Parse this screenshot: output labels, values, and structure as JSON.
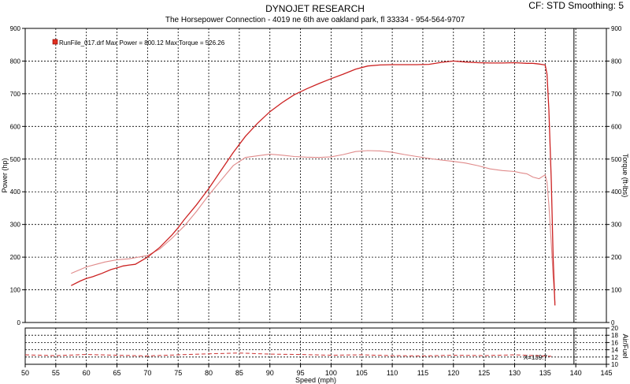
{
  "header": {
    "title": "DYNOJET RESEARCH",
    "subtitle": "The Horsepower Connection - 4019 ne 6th ave oakland park, fl 33334 - 954-564-9707",
    "settings": "CF: STD   Smoothing: 5"
  },
  "colors": {
    "power": "#cc2222",
    "torque": "#e08a8a",
    "afr": "#cc3333",
    "legend_marker": "#e03020",
    "grid": "#000000",
    "frame": "#000000"
  },
  "chart_data": [
    {
      "type": "line",
      "name": "power-torque",
      "xlabel": "Speed (mph)",
      "ylabel": "Power (hp)",
      "y2label": "Torque (ft-lbs)",
      "xlim": [
        50,
        145
      ],
      "ylim": [
        0,
        900
      ],
      "y2lim": [
        0,
        900
      ],
      "x_ticks": [
        50,
        55,
        60,
        65,
        70,
        75,
        80,
        85,
        90,
        95,
        100,
        105,
        110,
        115,
        120,
        125,
        130,
        135,
        140,
        145
      ],
      "y_ticks": [
        0,
        100,
        200,
        300,
        400,
        500,
        600,
        700,
        800,
        900
      ],
      "y2_ticks": [
        0,
        100,
        200,
        300,
        400,
        500,
        600,
        700,
        800,
        900
      ],
      "grid": true,
      "legend": {
        "position": "top-left",
        "entry": "RunFile_017.drf Max Power = 800.12    Max Torque = 526.26"
      },
      "series": [
        {
          "name": "Power",
          "x": [
            57.5,
            59,
            60,
            61,
            62.5,
            64,
            65,
            66,
            67,
            68,
            70,
            72,
            74,
            75,
            76,
            78,
            80,
            82,
            84,
            86,
            88,
            90,
            92,
            94,
            96,
            98,
            100,
            102,
            104,
            106,
            108,
            110,
            112,
            114,
            116,
            118,
            120,
            122,
            124,
            126,
            128,
            130,
            132,
            133,
            134,
            135,
            135.3,
            135.6,
            136,
            136.3,
            136.6
          ],
          "y": [
            113,
            127,
            135,
            140,
            150,
            162,
            167,
            173,
            176,
            178,
            200,
            230,
            268,
            290,
            315,
            360,
            410,
            465,
            520,
            570,
            610,
            645,
            673,
            697,
            715,
            731,
            746,
            760,
            775,
            785,
            788,
            789,
            789,
            789,
            790,
            796,
            800,
            797,
            795,
            794,
            794,
            795,
            793,
            793,
            791,
            788,
            760,
            650,
            430,
            200,
            52
          ]
        },
        {
          "name": "Torque",
          "x": [
            57.5,
            60,
            63,
            65,
            67,
            70,
            72,
            74,
            76,
            78,
            80,
            82,
            84,
            86,
            88,
            90,
            92,
            94,
            96,
            98,
            100,
            102,
            104,
            106,
            108,
            110,
            112,
            114,
            116,
            118,
            120,
            122,
            124,
            126,
            128,
            130,
            131,
            132,
            133,
            134,
            135,
            135.3,
            135.6,
            136,
            136.3,
            136.6
          ],
          "y": [
            150,
            170,
            185,
            192,
            195,
            205,
            225,
            258,
            295,
            340,
            390,
            435,
            480,
            505,
            510,
            515,
            512,
            508,
            506,
            505,
            507,
            514,
            523,
            526,
            525,
            521,
            514,
            508,
            502,
            497,
            493,
            488,
            480,
            470,
            465,
            462,
            458,
            455,
            445,
            440,
            452,
            430,
            360,
            240,
            140,
            60
          ]
        }
      ]
    },
    {
      "type": "line",
      "name": "air-fuel",
      "ylabel": "Air/Fuel",
      "xlim": [
        50,
        145
      ],
      "ylim": [
        10,
        20
      ],
      "y2_ticks": [
        10,
        12,
        14,
        16,
        18,
        20
      ],
      "grid": true,
      "annotation": "X=139.7",
      "series": [
        {
          "name": "Air/Fuel",
          "x": [
            50,
            55,
            60,
            65,
            70,
            75,
            80,
            85,
            90,
            95,
            100,
            105,
            110,
            115,
            120,
            125,
            130,
            135,
            136
          ],
          "y": [
            12.6,
            12.4,
            12.7,
            12.5,
            12.3,
            12.6,
            12.9,
            13.1,
            12.8,
            12.7,
            12.5,
            12.6,
            12.4,
            12.3,
            12.5,
            12.4,
            12.6,
            12.3,
            12.2
          ]
        }
      ]
    }
  ]
}
